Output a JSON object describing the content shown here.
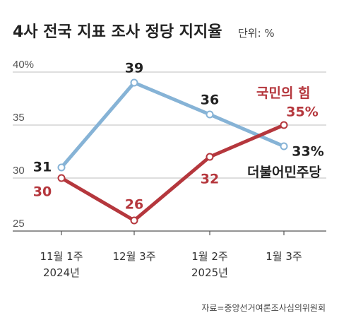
{
  "title": "4사 전국 지표 조사 정당 지지율",
  "unit": "단위: %",
  "source": "자료=중앙선거여론조사심의위원회",
  "colors": {
    "blue": "#86b3d6",
    "red": "#b5373d",
    "grid": "#bdbdbd"
  },
  "chart_data": {
    "type": "line",
    "title": "4사 전국 지표 조사 정당 지지율",
    "unit": "단위: %",
    "categories": [
      "11월 1주",
      "12월 3주",
      "1월 2주",
      "1월 3주"
    ],
    "year_labels": [
      "2024년",
      "",
      "2025년",
      ""
    ],
    "y_ticks": [
      {
        "value": 40,
        "label": "40%"
      },
      {
        "value": 35,
        "label": "35"
      },
      {
        "value": 30,
        "label": "30"
      },
      {
        "value": 25,
        "label": "25"
      }
    ],
    "ylim": [
      25,
      40
    ],
    "grid": true,
    "series": [
      {
        "name": "더불어민주당",
        "color": "#86b3d6",
        "values": [
          31,
          39,
          36,
          33
        ],
        "labels": [
          "31",
          "39",
          "36",
          "33%"
        ]
      },
      {
        "name": "국민의 힘",
        "color": "#b5373d",
        "values": [
          30,
          26,
          32,
          35
        ],
        "labels": [
          "30",
          "26",
          "32",
          "35%"
        ]
      }
    ]
  }
}
